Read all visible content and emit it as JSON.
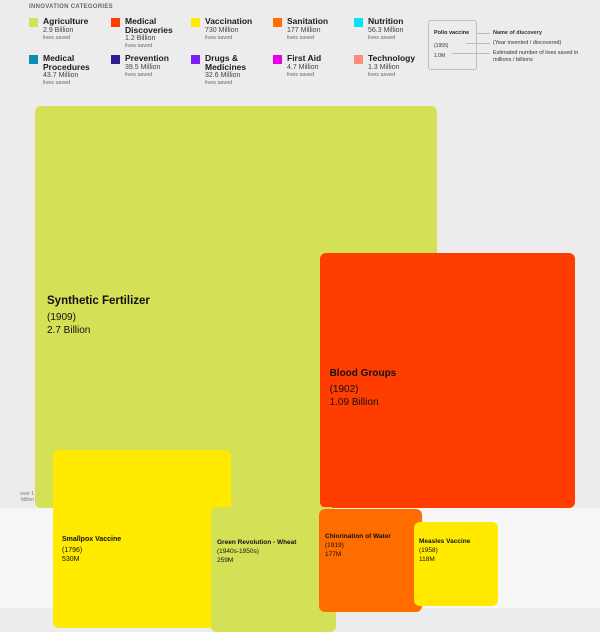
{
  "header": {
    "title": "INNOVATION CATEGORIES"
  },
  "categories": [
    {
      "name": "Agriculture",
      "amount": "2.9 Billion",
      "unit": "lives saved",
      "color": "#d4e157"
    },
    {
      "name": "Medical\nDiscoveries",
      "amount": "1.2 Billion",
      "unit": "lives saved",
      "color": "#ff3d00"
    },
    {
      "name": "Vaccination",
      "amount": "730 Million",
      "unit": "lives saved",
      "color": "#ffea00"
    },
    {
      "name": "Sanitation",
      "amount": "177 Million",
      "unit": "lives saved",
      "color": "#ff6d00"
    },
    {
      "name": "Nutrition",
      "amount": "56.3 Million",
      "unit": "lives saved",
      "color": "#00e5ff"
    },
    {
      "name": "Medical\nProcedures",
      "amount": "43.7 Million",
      "unit": "lives saved",
      "color": "#0a8fb0"
    },
    {
      "name": "Prevention",
      "amount": "39.5 Million",
      "unit": "lives saved",
      "color": "#311b92"
    },
    {
      "name": "Drugs &\nMedicines",
      "amount": "32.6 Million",
      "unit": "lives saved",
      "color": "#7c1dff"
    },
    {
      "name": "First Aid",
      "amount": "4.7 Million",
      "unit": "lives saved",
      "color": "#e600e6"
    },
    {
      "name": "Technology",
      "amount": "1.3 Million",
      "unit": "lives saved",
      "color": "#ff8a80"
    }
  ],
  "key": {
    "example_name": "Polio vaccine",
    "example_year": "(1955)",
    "example_lives": "1.0M",
    "label_name": "Name of discovery",
    "label_year": "(Year invented / discovered)",
    "label_lives": "Estimated number of lives saved in millions / billions"
  },
  "axis_note": "over 1 billion",
  "chart_data": {
    "type": "treemap",
    "title": "INNOVATION CATEGORIES",
    "items": [
      {
        "name": "Synthetic Fertilizer",
        "year": "(1909)",
        "label": "2.7 Billion",
        "value_millions": 2700,
        "category": "Agriculture",
        "color": "#d4e157"
      },
      {
        "name": "Blood Groups",
        "year": "(1902)",
        "label": "1.09 Billion",
        "value_millions": 1090,
        "category": "Medical Discoveries",
        "color": "#ff3d00"
      },
      {
        "name": "Smallpox Vaccine",
        "year": "(1796)",
        "label": "530M",
        "value_millions": 530,
        "category": "Vaccination",
        "color": "#ffea00"
      },
      {
        "name": "Green Revolution - Wheat",
        "year": "(1940s-1950s)",
        "label": "259M",
        "value_millions": 259,
        "category": "Agriculture",
        "color": "#d4e157"
      },
      {
        "name": "Chlorination of Water",
        "year": "(1919)",
        "label": "177M",
        "value_millions": 177,
        "category": "Sanitation",
        "color": "#ff6d00"
      },
      {
        "name": "Measles Vaccine",
        "year": "(1958)",
        "label": "118M",
        "value_millions": 118,
        "category": "Vaccination",
        "color": "#ffea00"
      }
    ]
  }
}
